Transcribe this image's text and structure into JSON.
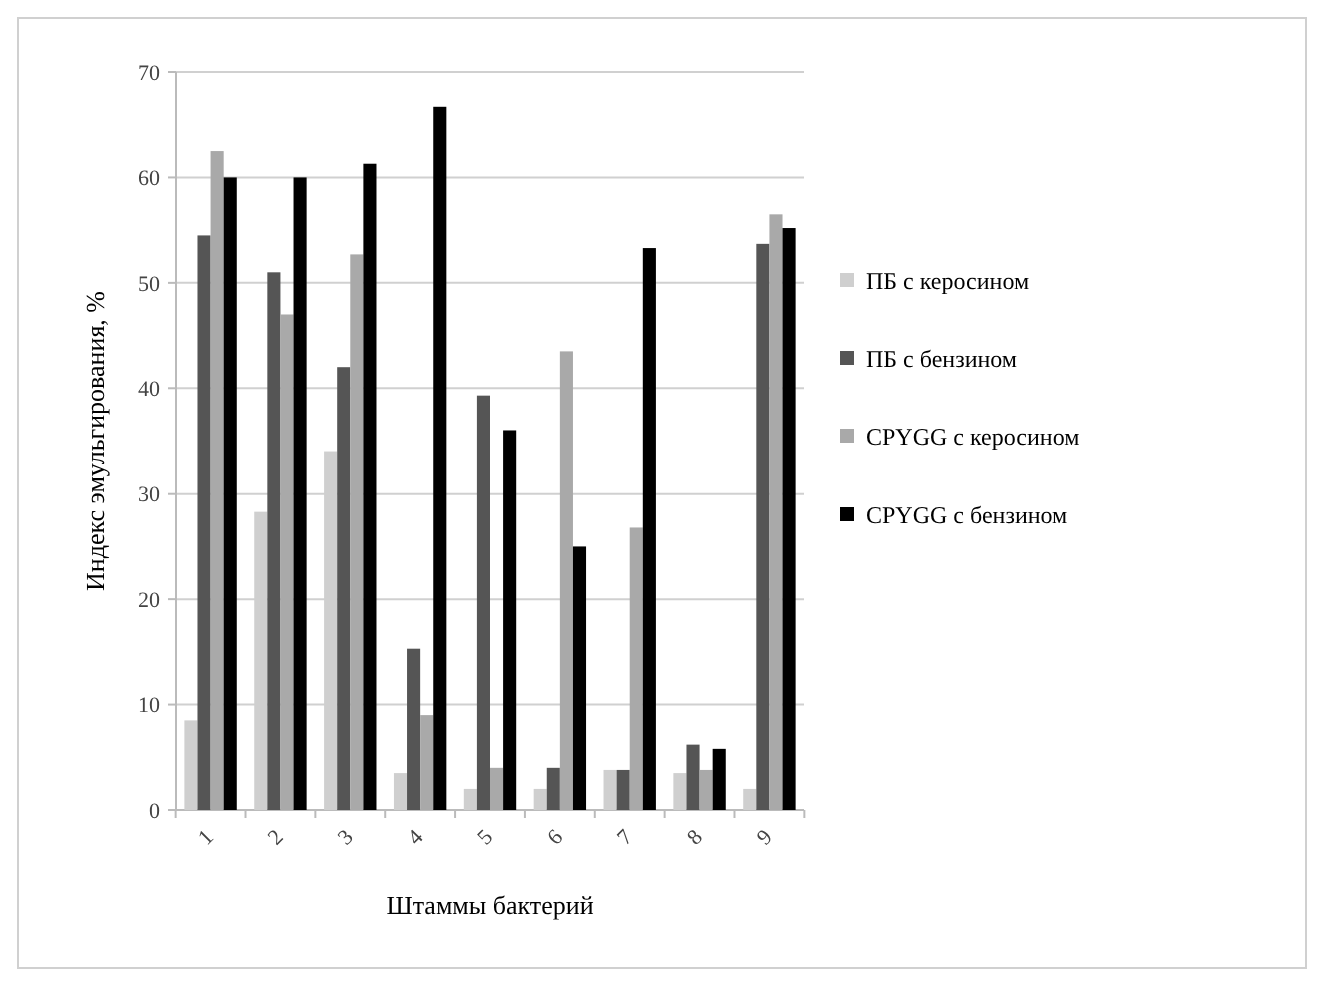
{
  "chart_data": {
    "type": "bar",
    "xlabel": "Штаммы бактерий",
    "ylabel": "Индекс эмульгирования, %",
    "categories": [
      "1",
      "2",
      "3",
      "4",
      "5",
      "6",
      "7",
      "8",
      "9"
    ],
    "series": [
      {
        "name": "ПБ с керосином",
        "color": "#cfcfcf",
        "values": [
          8.5,
          28.3,
          34,
          3.5,
          2,
          2,
          3.8,
          3.5,
          2
        ]
      },
      {
        "name": "ПБ с бензином",
        "color": "#555555",
        "values": [
          54.5,
          51,
          42,
          15.3,
          39.3,
          4,
          3.8,
          6.2,
          53.7
        ]
      },
      {
        "name": "CPYGG с керосином",
        "color": "#a9a9a9",
        "values": [
          62.5,
          47,
          52.7,
          9,
          4,
          43.5,
          26.8,
          3.8,
          56.5
        ]
      },
      {
        "name": "CPYGG с бензином",
        "color": "#000000",
        "values": [
          60,
          60,
          61.3,
          66.7,
          36,
          25,
          53.3,
          5.8,
          55.2
        ]
      }
    ],
    "ylim": [
      0,
      70
    ],
    "yticks": [
      0,
      10,
      20,
      30,
      40,
      50,
      60,
      70
    ],
    "grid": "y",
    "legend": "right"
  }
}
